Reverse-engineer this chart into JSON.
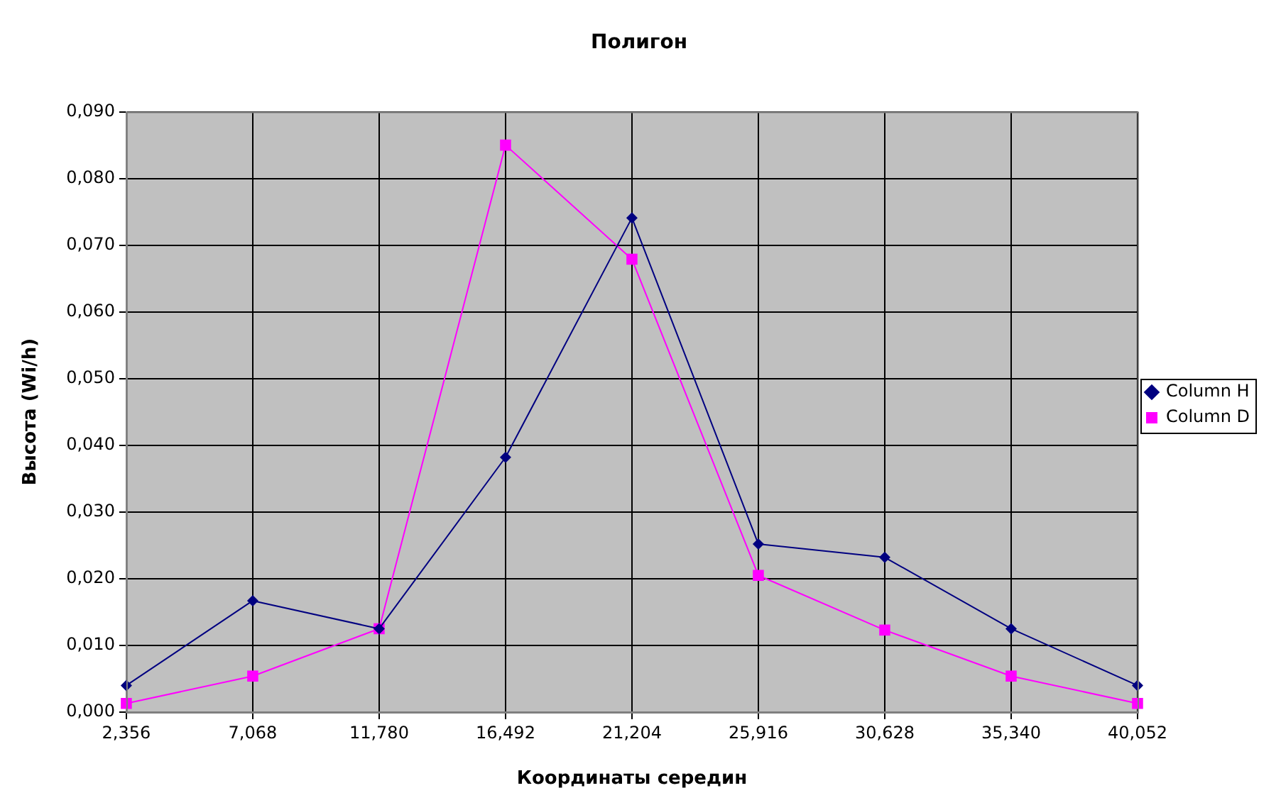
{
  "chart_data": {
    "type": "line",
    "title": "Полигон",
    "xlabel": "Координаты середин",
    "ylabel": "Высота (Wi/h)",
    "categories": [
      "2,356",
      "7,068",
      "11,780",
      "16,492",
      "21,204",
      "25,916",
      "30,628",
      "35,340",
      "40,052"
    ],
    "series": [
      {
        "name": "Column H",
        "color": "#000080",
        "marker": "diamond",
        "values": [
          0.004,
          0.0167,
          0.0125,
          0.0382,
          0.0741,
          0.0252,
          0.0232,
          0.0125,
          0.004
        ]
      },
      {
        "name": "Column D",
        "color": "#ff00ff",
        "marker": "square",
        "values": [
          0.0013,
          0.0054,
          0.0125,
          0.085,
          0.0679,
          0.0205,
          0.0123,
          0.0054,
          0.0013
        ]
      }
    ],
    "ylim": [
      0,
      0.09
    ],
    "yticks": [
      {
        "value": 0,
        "label": "0,000"
      },
      {
        "value": 0.01,
        "label": "0,010"
      },
      {
        "value": 0.02,
        "label": "0,020"
      },
      {
        "value": 0.03,
        "label": "0,030"
      },
      {
        "value": 0.04,
        "label": "0,040"
      },
      {
        "value": 0.05,
        "label": "0,050"
      },
      {
        "value": 0.06,
        "label": "0,060"
      },
      {
        "value": 0.07,
        "label": "0,070"
      },
      {
        "value": 0.08,
        "label": "0,080"
      },
      {
        "value": 0.09,
        "label": "0,090"
      }
    ],
    "grid": true,
    "legend": "right",
    "line_style": "solid"
  }
}
